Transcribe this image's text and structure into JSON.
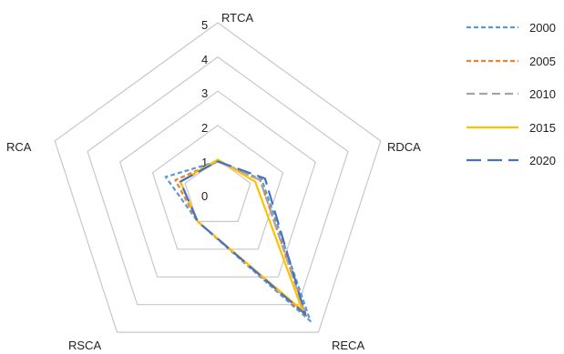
{
  "chart_data": {
    "type": "radar",
    "title": "",
    "axes": [
      "RTCA",
      "RDCA",
      "RECA",
      "RSCA",
      "RCA"
    ],
    "rlim": [
      0,
      5
    ],
    "ticks": [
      "0",
      "1",
      "2",
      "3",
      "4",
      "5"
    ],
    "grid": true,
    "legend_position": "right",
    "series": [
      {
        "name": "2000",
        "values": [
          0.95,
          1.35,
          4.6,
          1.0,
          1.6
        ],
        "color": "#5B9BD5",
        "dash": "short-dash"
      },
      {
        "name": "2005",
        "values": [
          0.95,
          1.3,
          4.4,
          1.0,
          1.3
        ],
        "color": "#ED7D31",
        "dash": "short-dash"
      },
      {
        "name": "2010",
        "values": [
          0.95,
          1.3,
          4.35,
          1.0,
          1.15
        ],
        "color": "#A5A5A5",
        "dash": "dash"
      },
      {
        "name": "2015",
        "values": [
          1.0,
          1.15,
          4.2,
          1.0,
          1.15
        ],
        "color": "#FFC000",
        "dash": "solid"
      },
      {
        "name": "2020",
        "values": [
          0.95,
          1.45,
          4.35,
          1.0,
          1.15
        ],
        "color": "#4472C4",
        "dash": "long-dash"
      }
    ]
  }
}
